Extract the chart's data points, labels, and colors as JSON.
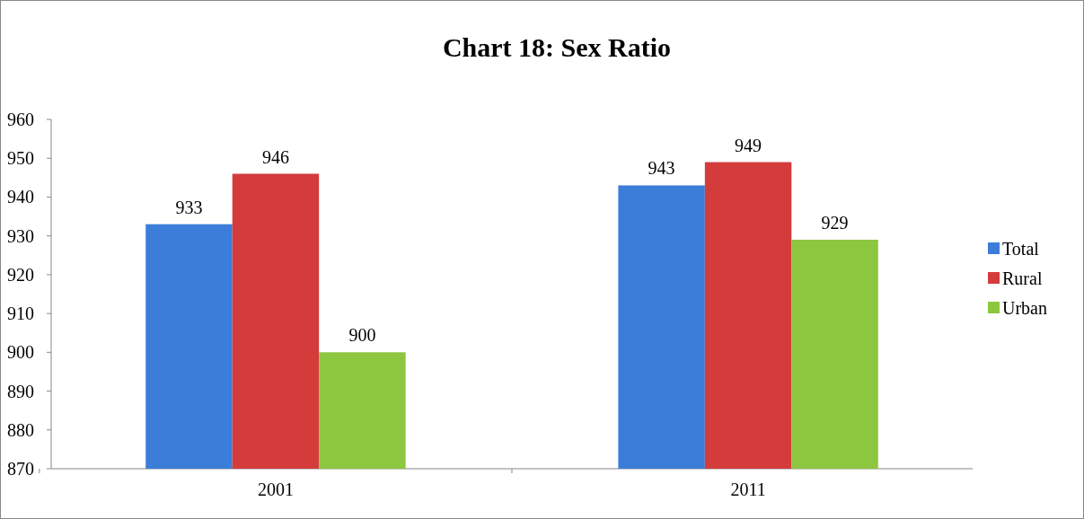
{
  "chart_data": {
    "type": "bar",
    "title": "Chart 18: Sex Ratio",
    "categories": [
      "2001",
      "2011"
    ],
    "series": [
      {
        "name": "Total",
        "color": "#3b7dd8",
        "values": [
          933,
          943
        ]
      },
      {
        "name": "Rural",
        "color": "#d43c3c",
        "values": [
          946,
          949
        ]
      },
      {
        "name": "Urban",
        "color": "#8dc63f",
        "values": [
          900,
          929
        ]
      }
    ],
    "ylim": [
      870,
      960
    ],
    "yticks": [
      870,
      880,
      890,
      900,
      910,
      920,
      930,
      940,
      950,
      960
    ],
    "data_labels": true,
    "legend": "right",
    "grid": false
  }
}
